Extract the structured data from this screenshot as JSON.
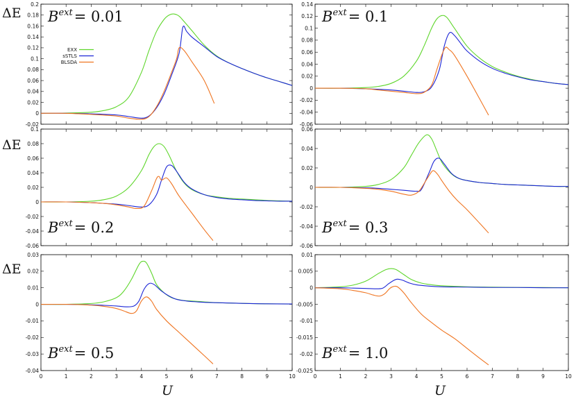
{
  "y_label": "ΔE",
  "x_label": "U",
  "colors": {
    "EXX": "#5ed62b",
    "sSTLS": "#1a24d6",
    "BLSDA": "#ef7420"
  },
  "legend": [
    "EXX",
    "sSTLS",
    "BLSDA"
  ],
  "chart_data": [
    {
      "type": "line",
      "title_prefix": "B",
      "title_sup": "ext",
      "title_value": "= 0.01",
      "xlim": [
        0,
        10
      ],
      "ylim": [
        -0.02,
        0.2
      ],
      "xticks": [
        0,
        1,
        2,
        3,
        4,
        5,
        6,
        7,
        8,
        9,
        10
      ],
      "yticks": [
        -0.02,
        0,
        0.02,
        0.04,
        0.06,
        0.08,
        0.1,
        0.12,
        0.14,
        0.16,
        0.18,
        0.2
      ],
      "ytick_labels": [
        "-0.02",
        "0",
        "0.02",
        "0.04",
        "0.06",
        "0.08",
        "0.1",
        "0.12",
        "0.14",
        "0.16",
        "0.18",
        "0.2"
      ],
      "series": [
        {
          "name": "EXX",
          "x": [
            0,
            1,
            2,
            2.5,
            3,
            3.5,
            4,
            4.3,
            4.6,
            4.9,
            5.1,
            5.3,
            5.5,
            5.7,
            6,
            6.5,
            7,
            7.5,
            8,
            8.5,
            9,
            9.5,
            10
          ],
          "y": [
            0,
            0.0005,
            0.002,
            0.005,
            0.012,
            0.03,
            0.075,
            0.115,
            0.15,
            0.172,
            0.18,
            0.182,
            0.178,
            0.168,
            0.152,
            0.125,
            0.105,
            0.092,
            0.082,
            0.073,
            0.065,
            0.058,
            0.051
          ]
        },
        {
          "name": "sSTLS",
          "x": [
            0,
            1,
            2,
            3,
            3.5,
            4,
            4.3,
            4.6,
            4.9,
            5.2,
            5.5,
            5.65,
            5.8,
            6,
            6.5,
            7,
            7.5,
            8,
            8.5,
            9,
            9.5,
            10
          ],
          "y": [
            0,
            0,
            -0.001,
            -0.003,
            -0.006,
            -0.009,
            -0.005,
            0.01,
            0.035,
            0.07,
            0.11,
            0.158,
            0.15,
            0.14,
            0.122,
            0.104,
            0.092,
            0.082,
            0.073,
            0.065,
            0.058,
            0.051
          ]
        },
        {
          "name": "BLSDA",
          "x": [
            0,
            1,
            2,
            3,
            3.5,
            4,
            4.3,
            4.6,
            4.9,
            5.2,
            5.4,
            5.5,
            5.7,
            6,
            6.5,
            6.9
          ],
          "y": [
            0,
            0,
            -0.002,
            -0.005,
            -0.009,
            -0.011,
            -0.006,
            0.012,
            0.04,
            0.075,
            0.1,
            0.12,
            0.115,
            0.095,
            0.06,
            0.018
          ]
        }
      ]
    },
    {
      "type": "line",
      "title_prefix": "B",
      "title_sup": "ext",
      "title_value": "= 0.1",
      "xlim": [
        0,
        10
      ],
      "ylim": [
        -0.06,
        0.14
      ],
      "xticks": [
        0,
        1,
        2,
        3,
        4,
        5,
        6,
        7,
        8,
        9,
        10
      ],
      "yticks": [
        -0.06,
        -0.04,
        -0.02,
        0,
        0.02,
        0.04,
        0.06,
        0.08,
        0.1,
        0.12,
        0.14
      ],
      "ytick_labels": [
        "-0.06",
        "-0.04",
        "-0.02",
        "0",
        "0.02",
        "0.04",
        "0.06",
        "0.08",
        "0.1",
        "0.12",
        "0.14"
      ],
      "series": [
        {
          "name": "EXX",
          "x": [
            0,
            1,
            2,
            2.5,
            3,
            3.5,
            4,
            4.3,
            4.6,
            4.8,
            5,
            5.2,
            5.5,
            6,
            6.5,
            7,
            7.5,
            8,
            8.5,
            9,
            9.5,
            10
          ],
          "y": [
            0,
            0,
            0.001,
            0.003,
            0.008,
            0.02,
            0.045,
            0.07,
            0.1,
            0.115,
            0.121,
            0.118,
            0.1,
            0.07,
            0.05,
            0.036,
            0.027,
            0.02,
            0.015,
            0.011,
            0.008,
            0.006
          ]
        },
        {
          "name": "sSTLS",
          "x": [
            0,
            1,
            2,
            3,
            3.5,
            4,
            4.3,
            4.6,
            4.9,
            5.1,
            5.3,
            5.5,
            5.8,
            6,
            6.5,
            7,
            7.5,
            8,
            8.5,
            9,
            9.5,
            10
          ],
          "y": [
            0,
            0,
            -0.001,
            -0.003,
            -0.005,
            -0.007,
            -0.006,
            0.002,
            0.03,
            0.07,
            0.092,
            0.088,
            0.072,
            0.062,
            0.045,
            0.033,
            0.025,
            0.019,
            0.014,
            0.011,
            0.008,
            0.006
          ]
        },
        {
          "name": "BLSDA",
          "x": [
            0,
            1,
            2,
            2.5,
            3,
            3.5,
            4,
            4.3,
            4.6,
            4.8,
            5,
            5.15,
            5.3,
            5.5,
            6,
            6.5,
            6.85
          ],
          "y": [
            0,
            0,
            -0.001,
            -0.003,
            -0.005,
            -0.007,
            -0.009,
            -0.007,
            0.005,
            0.03,
            0.055,
            0.068,
            0.064,
            0.055,
            0.02,
            -0.018,
            -0.045
          ]
        }
      ]
    },
    {
      "type": "line",
      "title_prefix": "B",
      "title_sup": "ext",
      "title_value": "= 0.2",
      "xlim": [
        0,
        10
      ],
      "ylim": [
        -0.06,
        0.1
      ],
      "xticks": [
        0,
        1,
        2,
        3,
        4,
        5,
        6,
        7,
        8,
        9,
        10
      ],
      "yticks": [
        -0.06,
        -0.04,
        -0.02,
        0,
        0.02,
        0.04,
        0.06,
        0.08,
        0.1
      ],
      "ytick_labels": [
        "-0.06",
        "-0.04",
        "-0.02",
        "0",
        "0.02",
        "0.04",
        "0.06",
        "0.08",
        "0.1"
      ],
      "series": [
        {
          "name": "EXX",
          "x": [
            0,
            1,
            2,
            2.5,
            3,
            3.5,
            4,
            4.3,
            4.5,
            4.7,
            4.9,
            5.1,
            5.4,
            5.7,
            6,
            6.5,
            7,
            7.5,
            8,
            8.5,
            9,
            9.5,
            10
          ],
          "y": [
            0,
            0,
            0.001,
            0.003,
            0.008,
            0.02,
            0.043,
            0.065,
            0.076,
            0.08,
            0.076,
            0.064,
            0.042,
            0.026,
            0.017,
            0.01,
            0.007,
            0.005,
            0.004,
            0.003,
            0.002,
            0.0015,
            0.001
          ]
        },
        {
          "name": "sSTLS",
          "x": [
            0,
            1,
            2,
            2.5,
            3,
            3.5,
            4,
            4.3,
            4.6,
            4.8,
            5,
            5.2,
            5.4,
            5.7,
            6,
            6.5,
            7,
            7.5,
            8,
            8.5,
            9,
            9.5,
            10
          ],
          "y": [
            0,
            0,
            -0.001,
            -0.002,
            -0.003,
            -0.005,
            -0.007,
            -0.004,
            0.01,
            0.03,
            0.048,
            0.05,
            0.042,
            0.027,
            0.018,
            0.01,
            0.006,
            0.004,
            0.003,
            0.002,
            0.0015,
            0.001,
            0.001
          ]
        },
        {
          "name": "BLSDA",
          "x": [
            0,
            1,
            2,
            2.5,
            3,
            3.5,
            3.8,
            4.1,
            4.4,
            4.6,
            4.7,
            4.8,
            5,
            5.2,
            5.5,
            6,
            6.5,
            6.85
          ],
          "y": [
            0,
            0,
            -0.001,
            -0.002,
            -0.004,
            -0.007,
            -0.009,
            -0.006,
            0.015,
            0.032,
            0.035,
            0.03,
            0.033,
            0.025,
            0.008,
            -0.015,
            -0.038,
            -0.053
          ]
        }
      ]
    },
    {
      "type": "line",
      "title_prefix": "B",
      "title_sup": "ext",
      "title_value": "= 0.3",
      "xlim": [
        0,
        10
      ],
      "ylim": [
        -0.06,
        0.06
      ],
      "xticks": [
        0,
        1,
        2,
        3,
        4,
        5,
        6,
        7,
        8,
        9,
        10
      ],
      "yticks": [
        -0.06,
        -0.04,
        -0.02,
        0,
        0.02,
        0.04,
        0.06
      ],
      "ytick_labels": [
        "-0.06",
        "-0.04",
        "-0.02",
        "0",
        "0.02",
        "0.04",
        "0.06"
      ],
      "series": [
        {
          "name": "EXX",
          "x": [
            0,
            1,
            2,
            2.5,
            3,
            3.5,
            3.8,
            4.1,
            4.4,
            4.6,
            4.8,
            5,
            5.3,
            5.6,
            6,
            6.5,
            7,
            7.5,
            8,
            8.5,
            9,
            9.5,
            10
          ],
          "y": [
            0,
            0,
            0.001,
            0.003,
            0.008,
            0.02,
            0.033,
            0.046,
            0.054,
            0.05,
            0.038,
            0.026,
            0.016,
            0.01,
            0.007,
            0.005,
            0.004,
            0.003,
            0.0025,
            0.002,
            0.0015,
            0.001,
            0.001
          ]
        },
        {
          "name": "sSTLS",
          "x": [
            0,
            1,
            2,
            2.5,
            3,
            3.5,
            4,
            4.2,
            4.5,
            4.7,
            4.9,
            5.1,
            5.4,
            5.7,
            6,
            6.5,
            7,
            7.5,
            8,
            8.5,
            9,
            9.5,
            10
          ],
          "y": [
            0,
            0,
            -0.0005,
            -0.001,
            -0.002,
            -0.003,
            -0.004,
            -0.002,
            0.015,
            0.027,
            0.03,
            0.024,
            0.014,
            0.009,
            0.007,
            0.005,
            0.004,
            0.003,
            0.0025,
            0.002,
            0.0015,
            0.001,
            0.001
          ]
        },
        {
          "name": "BLSDA",
          "x": [
            0,
            1,
            2,
            2.5,
            3,
            3.5,
            3.8,
            4.1,
            4.4,
            4.6,
            4.7,
            4.85,
            5,
            5.3,
            5.6,
            6,
            6.5,
            6.85
          ],
          "y": [
            0,
            0,
            -0.001,
            -0.002,
            -0.004,
            -0.007,
            -0.008,
            -0.004,
            0.008,
            0.016,
            0.017,
            0.013,
            0.007,
            -0.004,
            -0.013,
            -0.023,
            -0.037,
            -0.047
          ]
        }
      ]
    },
    {
      "type": "line",
      "title_prefix": "B",
      "title_sup": "ext",
      "title_value": "= 0.5",
      "xlim": [
        0,
        10
      ],
      "ylim": [
        -0.04,
        0.03
      ],
      "xticks": [
        0,
        1,
        2,
        3,
        4,
        5,
        6,
        7,
        8,
        9,
        10
      ],
      "yticks": [
        -0.04,
        -0.03,
        -0.02,
        -0.01,
        0,
        0.01,
        0.02,
        0.03
      ],
      "ytick_labels": [
        "-0.04",
        "-0.03",
        "-0.02",
        "-0.01",
        "0",
        "0.01",
        "0.02",
        "0.03"
      ],
      "series": [
        {
          "name": "EXX",
          "x": [
            0,
            1,
            2,
            2.5,
            3,
            3.3,
            3.6,
            3.9,
            4.05,
            4.2,
            4.4,
            4.6,
            4.9,
            5.2,
            5.6,
            6,
            6.5,
            7,
            7.5,
            8,
            9,
            10
          ],
          "y": [
            0,
            0,
            0.0005,
            0.0015,
            0.004,
            0.008,
            0.015,
            0.024,
            0.026,
            0.025,
            0.019,
            0.012,
            0.007,
            0.004,
            0.0025,
            0.002,
            0.0015,
            0.001,
            0.0008,
            0.0006,
            0.0003,
            0.0002
          ]
        },
        {
          "name": "sSTLS",
          "x": [
            0,
            1,
            2,
            2.5,
            3,
            3.4,
            3.7,
            3.9,
            4.1,
            4.3,
            4.5,
            4.8,
            5.1,
            5.4,
            5.8,
            6.2,
            6.5,
            7,
            7.5,
            8,
            9,
            10
          ],
          "y": [
            0,
            0,
            -0.0003,
            -0.0006,
            -0.001,
            -0.0015,
            -0.001,
            0.002,
            0.009,
            0.0125,
            0.012,
            0.008,
            0.005,
            0.003,
            0.002,
            0.0015,
            0.0012,
            0.001,
            0.0008,
            0.0006,
            0.0003,
            0.0002
          ]
        },
        {
          "name": "BLSDA",
          "x": [
            0,
            1,
            2,
            2.5,
            3,
            3.3,
            3.6,
            3.8,
            4,
            4.2,
            4.4,
            4.6,
            5,
            5.5,
            6,
            6.5,
            6.85
          ],
          "y": [
            0,
            0,
            -0.0005,
            -0.0012,
            -0.0025,
            -0.004,
            -0.0055,
            -0.004,
            0.002,
            0.0045,
            0.002,
            -0.003,
            -0.01,
            -0.017,
            -0.024,
            -0.031,
            -0.036
          ]
        }
      ]
    },
    {
      "type": "line",
      "title_prefix": "B",
      "title_sup": "ext",
      "title_value": "= 1.0",
      "xlim": [
        0,
        10
      ],
      "ylim": [
        -0.025,
        0.01
      ],
      "xticks": [
        0,
        1,
        2,
        3,
        4,
        5,
        6,
        7,
        8,
        9,
        10
      ],
      "yticks": [
        -0.025,
        -0.02,
        -0.015,
        -0.01,
        -0.005,
        0,
        0.005,
        0.01
      ],
      "ytick_labels": [
        "-0.025",
        "-0.02",
        "-0.015",
        "-0.01",
        "-0.005",
        "0",
        "0.005",
        "0.01"
      ],
      "series": [
        {
          "name": "EXX",
          "x": [
            0,
            1,
            1.5,
            2,
            2.5,
            2.8,
            3,
            3.2,
            3.5,
            3.8,
            4.2,
            4.6,
            5,
            6,
            7,
            8,
            9,
            10
          ],
          "y": [
            0,
            0.0003,
            0.0008,
            0.002,
            0.0043,
            0.0055,
            0.0058,
            0.0055,
            0.004,
            0.0025,
            0.0014,
            0.0009,
            0.0006,
            0.0003,
            0.0002,
            0.0001,
            0.0001,
            0
          ]
        },
        {
          "name": "sSTLS",
          "x": [
            0,
            1,
            1.5,
            2,
            2.5,
            2.7,
            2.9,
            3.1,
            3.25,
            3.45,
            3.7,
            4,
            4.5,
            5,
            6,
            7,
            8,
            9,
            10
          ],
          "y": [
            0,
            0,
            -0.0001,
            -0.0002,
            -0.0003,
            0,
            0.0012,
            0.0022,
            0.0026,
            0.0023,
            0.0015,
            0.0009,
            0.0005,
            0.0003,
            0.0002,
            0.0001,
            0.0001,
            0,
            0
          ]
        },
        {
          "name": "BLSDA",
          "x": [
            0,
            1,
            1.5,
            2,
            2.3,
            2.55,
            2.75,
            2.95,
            3.1,
            3.25,
            3.5,
            3.8,
            4.2,
            4.6,
            5,
            5.5,
            6,
            6.5,
            6.85
          ],
          "y": [
            0,
            -0.0003,
            -0.0008,
            -0.0015,
            -0.0022,
            -0.0025,
            -0.0018,
            -0.0002,
            0.0004,
            0.0003,
            -0.0015,
            -0.0045,
            -0.008,
            -0.0105,
            -0.0128,
            -0.0153,
            -0.0183,
            -0.0213,
            -0.0233
          ]
        }
      ]
    }
  ]
}
